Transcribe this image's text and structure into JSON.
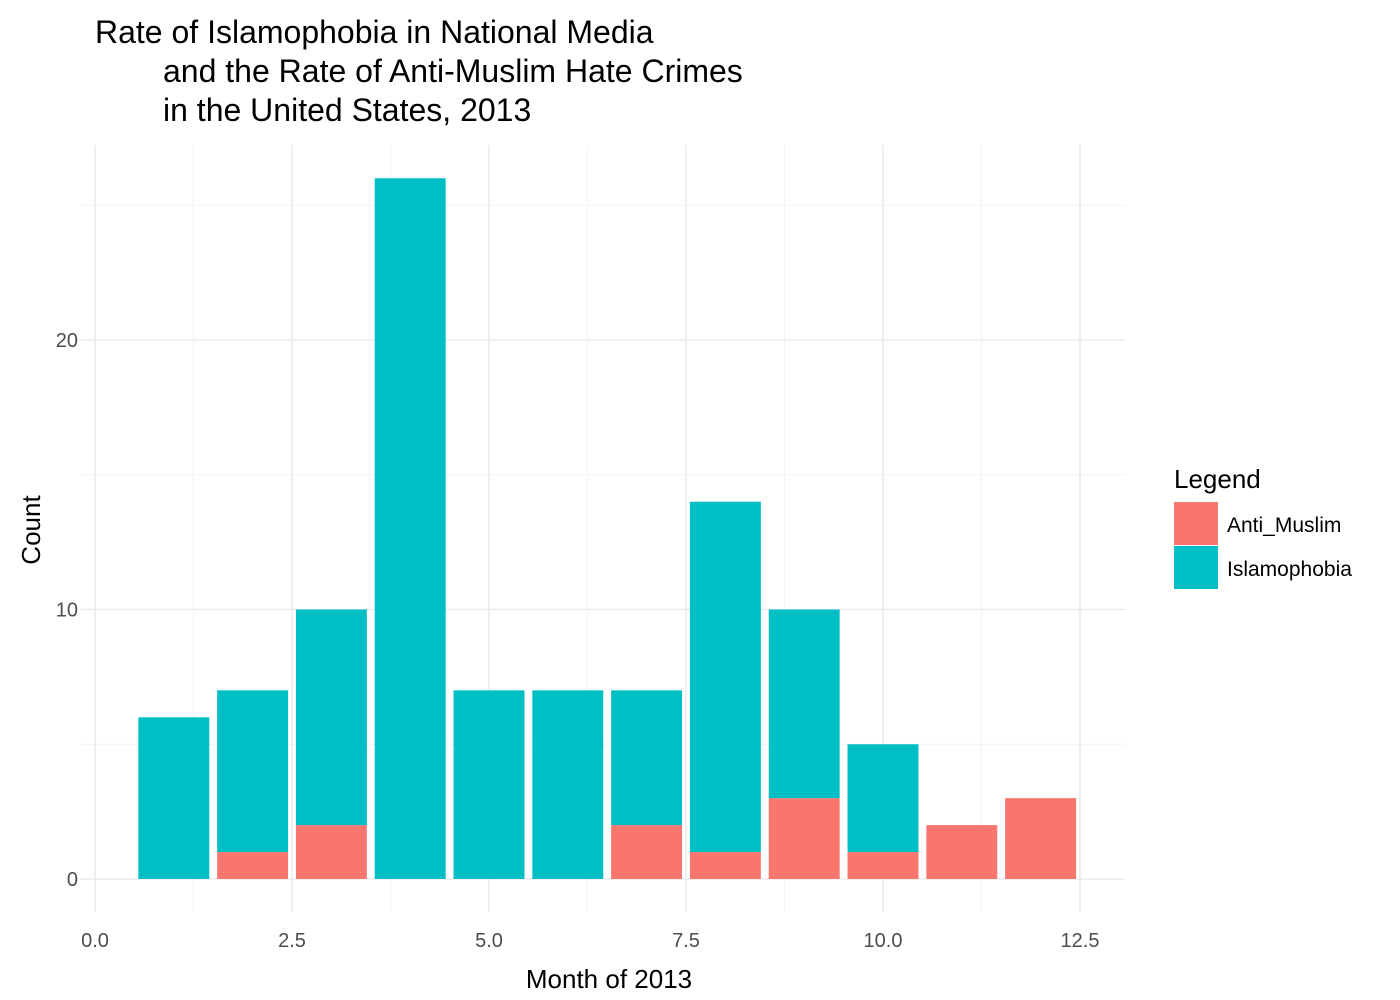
{
  "chart_data": {
    "type": "bar",
    "stacked": true,
    "title": [
      "Rate of Islamophobia in National Media",
      "and the Rate of Anti-Muslim Hate Crimes",
      "in the United States, 2013"
    ],
    "xlabel": "Month of 2013",
    "ylabel": "Count",
    "xlim": [
      0,
      13
    ],
    "ylim": [
      0,
      26
    ],
    "x_ticks": [
      0.0,
      2.5,
      5.0,
      7.5,
      10.0,
      12.5
    ],
    "x_tick_labels": [
      "0.0",
      "2.5",
      "5.0",
      "7.5",
      "10.0",
      "12.5"
    ],
    "y_ticks": [
      0,
      10,
      20
    ],
    "y_tick_labels": [
      "0",
      "10",
      "20"
    ],
    "grid": true,
    "legend": {
      "title": "Legend",
      "position": "right"
    },
    "x": [
      1,
      2,
      3,
      4,
      5,
      6,
      7,
      8,
      9,
      10,
      11,
      12
    ],
    "series": [
      {
        "name": "Anti_Muslim",
        "color": "#F8766D",
        "values": [
          0,
          1,
          2,
          0,
          0,
          0,
          2,
          1,
          3,
          1,
          2,
          3
        ]
      },
      {
        "name": "Islamophobia",
        "color": "#00BFC4",
        "values": [
          6,
          6,
          8,
          26,
          7,
          7,
          5,
          13,
          7,
          4,
          0,
          0
        ]
      }
    ]
  }
}
